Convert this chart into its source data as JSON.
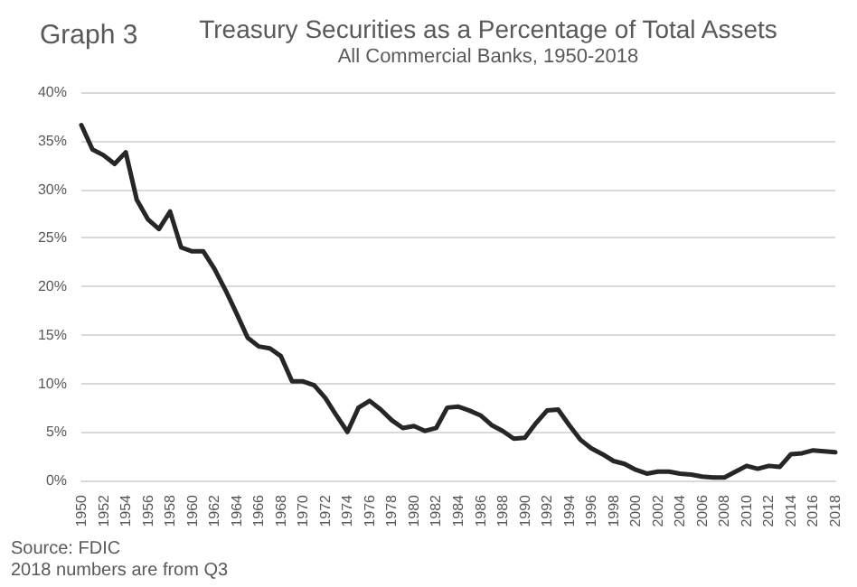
{
  "chart_data": {
    "type": "line",
    "title": "Treasury Securities as a Percentage of Total Assets",
    "subtitle": "All Commercial Banks, 1950-2018",
    "annotations": [
      "Graph 3",
      "Source: FDIC",
      "2018 numbers are from Q3"
    ],
    "categories": [
      "1950",
      null,
      "1952",
      null,
      "1954",
      null,
      "1956",
      null,
      "1958",
      null,
      "1960",
      null,
      "1962",
      null,
      "1964",
      null,
      "1966",
      null,
      "1968",
      null,
      "1970",
      null,
      "1972",
      null,
      "1974",
      null,
      "1976",
      null,
      "1978",
      null,
      "1980",
      null,
      "1982",
      null,
      "1984",
      null,
      "1986",
      null,
      "1988",
      null,
      "1990",
      null,
      "1992",
      null,
      "1994",
      null,
      "1996",
      null,
      "1998",
      null,
      "2000",
      null,
      "2002",
      null,
      "2004",
      null,
      "2006",
      null,
      "2008",
      null,
      "2010",
      null,
      "2012",
      null,
      "2014",
      null,
      "2016",
      null,
      "2018"
    ],
    "series": [
      {
        "color": "#262626",
        "values": [
          36.6,
          34.1,
          33.5,
          32.6,
          33.8,
          28.9,
          26.9,
          25.9,
          27.7,
          24.0,
          23.6,
          23.6,
          21.8,
          19.6,
          17.2,
          14.7,
          13.8,
          13.6,
          12.8,
          10.2,
          10.2,
          9.8,
          8.5,
          6.7,
          5.0,
          7.5,
          8.2,
          7.3,
          6.2,
          5.4,
          5.6,
          5.1,
          5.4,
          7.5,
          7.6,
          7.2,
          6.7,
          5.7,
          5.1,
          4.3,
          4.4,
          5.9,
          7.2,
          7.3,
          5.7,
          4.2,
          3.3,
          2.7,
          2.0,
          1.7,
          1.1,
          0.7,
          0.9,
          0.9,
          0.7,
          0.6,
          0.4,
          0.3,
          0.3,
          0.9,
          1.5,
          1.2,
          1.5,
          1.4,
          2.7,
          2.8,
          3.1,
          3.0,
          2.9
        ]
      }
    ],
    "ylim": [
      0,
      40
    ],
    "yticks": [
      {
        "value": 0,
        "label": "0%"
      },
      {
        "value": 5,
        "label": "5%"
      },
      {
        "value": 10,
        "label": "10%"
      },
      {
        "value": 15,
        "label": "15%"
      },
      {
        "value": 20,
        "label": "20%"
      },
      {
        "value": 25,
        "label": "25%"
      },
      {
        "value": 30,
        "label": "30%"
      },
      {
        "value": 35,
        "label": "35%"
      },
      {
        "value": 40,
        "label": "40%"
      }
    ],
    "grid": "y",
    "marker": "none",
    "line_style": "solid"
  }
}
